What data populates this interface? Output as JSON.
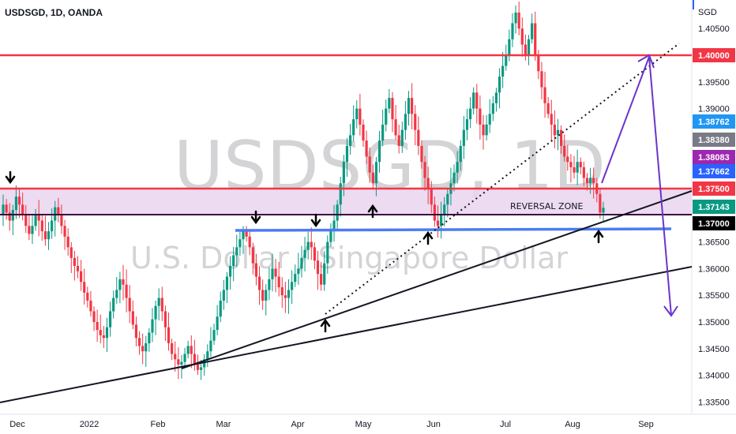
{
  "header": {
    "title": "USDSGD, 1D, OANDA",
    "currency": "SGD"
  },
  "watermark": {
    "symbol": "USDSGD, 1D",
    "description": "U.S. Dollar / Singapore Dollar"
  },
  "chart_data": {
    "type": "candlestick",
    "title": "USDSGD, 1D, OANDA",
    "y_axis_unit": "SGD",
    "ylim": [
      1.33,
      1.41
    ],
    "y_ticks": [
      "1.40500",
      "1.39500",
      "1.39000",
      "1.36500",
      "1.36000",
      "1.35500",
      "1.35000",
      "1.34500",
      "1.34000",
      "1.33500"
    ],
    "x_ticks": [
      "Dec",
      "2022",
      "Feb",
      "Mar",
      "Apr",
      "May",
      "Jun",
      "Jul",
      "Aug",
      "Sep"
    ],
    "price_tags": [
      {
        "label": "1.40000",
        "color": "#f23645"
      },
      {
        "label": "1.38762",
        "color": "#2196f3"
      },
      {
        "label": "1.38380",
        "color": "#787b86"
      },
      {
        "label": "1.38083",
        "color": "#9c27b0"
      },
      {
        "label": "1.37662",
        "color": "#2962ff"
      },
      {
        "label": "1.37500",
        "color": "#f23645"
      },
      {
        "label": "1.37143",
        "color": "#089981"
      },
      {
        "label": "1.37000",
        "color": "#000000"
      }
    ],
    "annotations": [
      {
        "text": "REVERSAL ZONE"
      }
    ],
    "levels": [
      {
        "price": 1.4,
        "color": "#f23645"
      },
      {
        "price": 1.375,
        "color": "#f23645"
      },
      {
        "price": 1.37,
        "color": "#3d0a3d"
      },
      {
        "price": 1.367,
        "color": "#4c7bf3"
      }
    ],
    "zone": {
      "from": 1.37,
      "to": 1.375,
      "color": "#e9d4ee"
    },
    "candles_close": [
      1.372,
      1.3705,
      1.369,
      1.371,
      1.3735,
      1.372,
      1.37,
      1.368,
      1.3665,
      1.368,
      1.37,
      1.369,
      1.367,
      1.3655,
      1.367,
      1.369,
      1.3715,
      1.37,
      1.368,
      1.366,
      1.364,
      1.362,
      1.3605,
      1.3595,
      1.3575,
      1.3555,
      1.354,
      1.352,
      1.35,
      1.3485,
      1.3475,
      1.347,
      1.349,
      1.352,
      1.3545,
      1.356,
      1.358,
      1.357,
      1.3545,
      1.352,
      1.3495,
      1.347,
      1.3455,
      1.3445,
      1.346,
      1.348,
      1.3505,
      1.353,
      1.3545,
      1.352,
      1.349,
      1.346,
      1.344,
      1.343,
      1.342,
      1.3425,
      1.344,
      1.3455,
      1.344,
      1.342,
      1.341,
      1.3415,
      1.343,
      1.3445,
      1.3465,
      1.3485,
      1.351,
      1.354,
      1.356,
      1.3585,
      1.3605,
      1.3625,
      1.364,
      1.3655,
      1.367,
      1.366,
      1.364,
      1.361,
      1.3585,
      1.356,
      1.354,
      1.356,
      1.358,
      1.36,
      1.3585,
      1.3565,
      1.355,
      1.3545,
      1.356,
      1.3575,
      1.359,
      1.36,
      1.362,
      1.3635,
      1.365,
      1.364,
      1.3615,
      1.359,
      1.357,
      1.361,
      1.365,
      1.367,
      1.369,
      1.372,
      1.376,
      1.38,
      1.383,
      1.385,
      1.388,
      1.39,
      1.387,
      1.384,
      1.381,
      1.378,
      1.376,
      1.38,
      1.384,
      1.387,
      1.39,
      1.392,
      1.388,
      1.385,
      1.383,
      1.386,
      1.389,
      1.392,
      1.389,
      1.386,
      1.383,
      1.38,
      1.377,
      1.375,
      1.372,
      1.369,
      1.368,
      1.37,
      1.372,
      1.374,
      1.376,
      1.378,
      1.38,
      1.383,
      1.386,
      1.388,
      1.39,
      1.393,
      1.39,
      1.387,
      1.385,
      1.387,
      1.389,
      1.391,
      1.393,
      1.396,
      1.398,
      1.4,
      1.403,
      1.406,
      1.408,
      1.405,
      1.402,
      1.4,
      1.403,
      1.406,
      1.4,
      1.397,
      1.394,
      1.391,
      1.389,
      1.387,
      1.385,
      1.386,
      1.383,
      1.381,
      1.38,
      1.379,
      1.378,
      1.38,
      1.379,
      1.377,
      1.376,
      1.377,
      1.376,
      1.374,
      1.3705,
      1.3714
    ]
  },
  "colors": {
    "up": "#089981",
    "down": "#f23645",
    "wick_up": "#089981",
    "wick_down": "#f23645",
    "trendline": "#131722",
    "projection": "#6a35c9",
    "arrow": "#000000"
  }
}
